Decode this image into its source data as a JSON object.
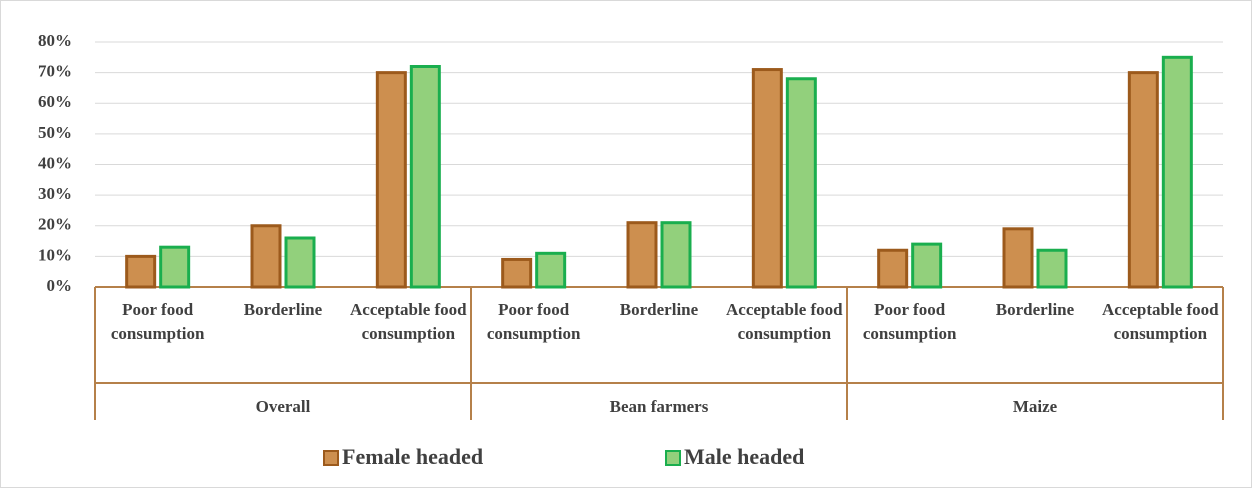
{
  "chart_data": {
    "type": "bar",
    "groups": [
      "Overall",
      "Bean farmers",
      "Maize"
    ],
    "categories": [
      "Poor food consumption",
      "Borderline",
      "Acceptable food consumption",
      "Poor food consumption",
      "Borderline",
      "Acceptable food consumption",
      "Poor food consumption",
      "Borderline",
      "Acceptable food consumption"
    ],
    "series": [
      {
        "name": "Female headed",
        "color": "#cd8f4f",
        "values": [
          10,
          20,
          70,
          9,
          21,
          71,
          12,
          19,
          70
        ]
      },
      {
        "name": "Male headed",
        "color": "#92d07c",
        "values": [
          13,
          16,
          72,
          11,
          21,
          68,
          14,
          12,
          75
        ]
      }
    ],
    "ylim": [
      0,
      80
    ],
    "yticks": [
      {
        "value": 0,
        "label": "0%"
      },
      {
        "value": 10,
        "label": "10%"
      },
      {
        "value": 20,
        "label": "20%"
      },
      {
        "value": 30,
        "label": "30%"
      },
      {
        "value": 40,
        "label": "40%"
      },
      {
        "value": 50,
        "label": "50%"
      },
      {
        "value": 60,
        "label": "60%"
      },
      {
        "value": 70,
        "label": "70%"
      },
      {
        "value": 80,
        "label": "80%"
      }
    ],
    "grid": true,
    "legend": "bottom"
  }
}
